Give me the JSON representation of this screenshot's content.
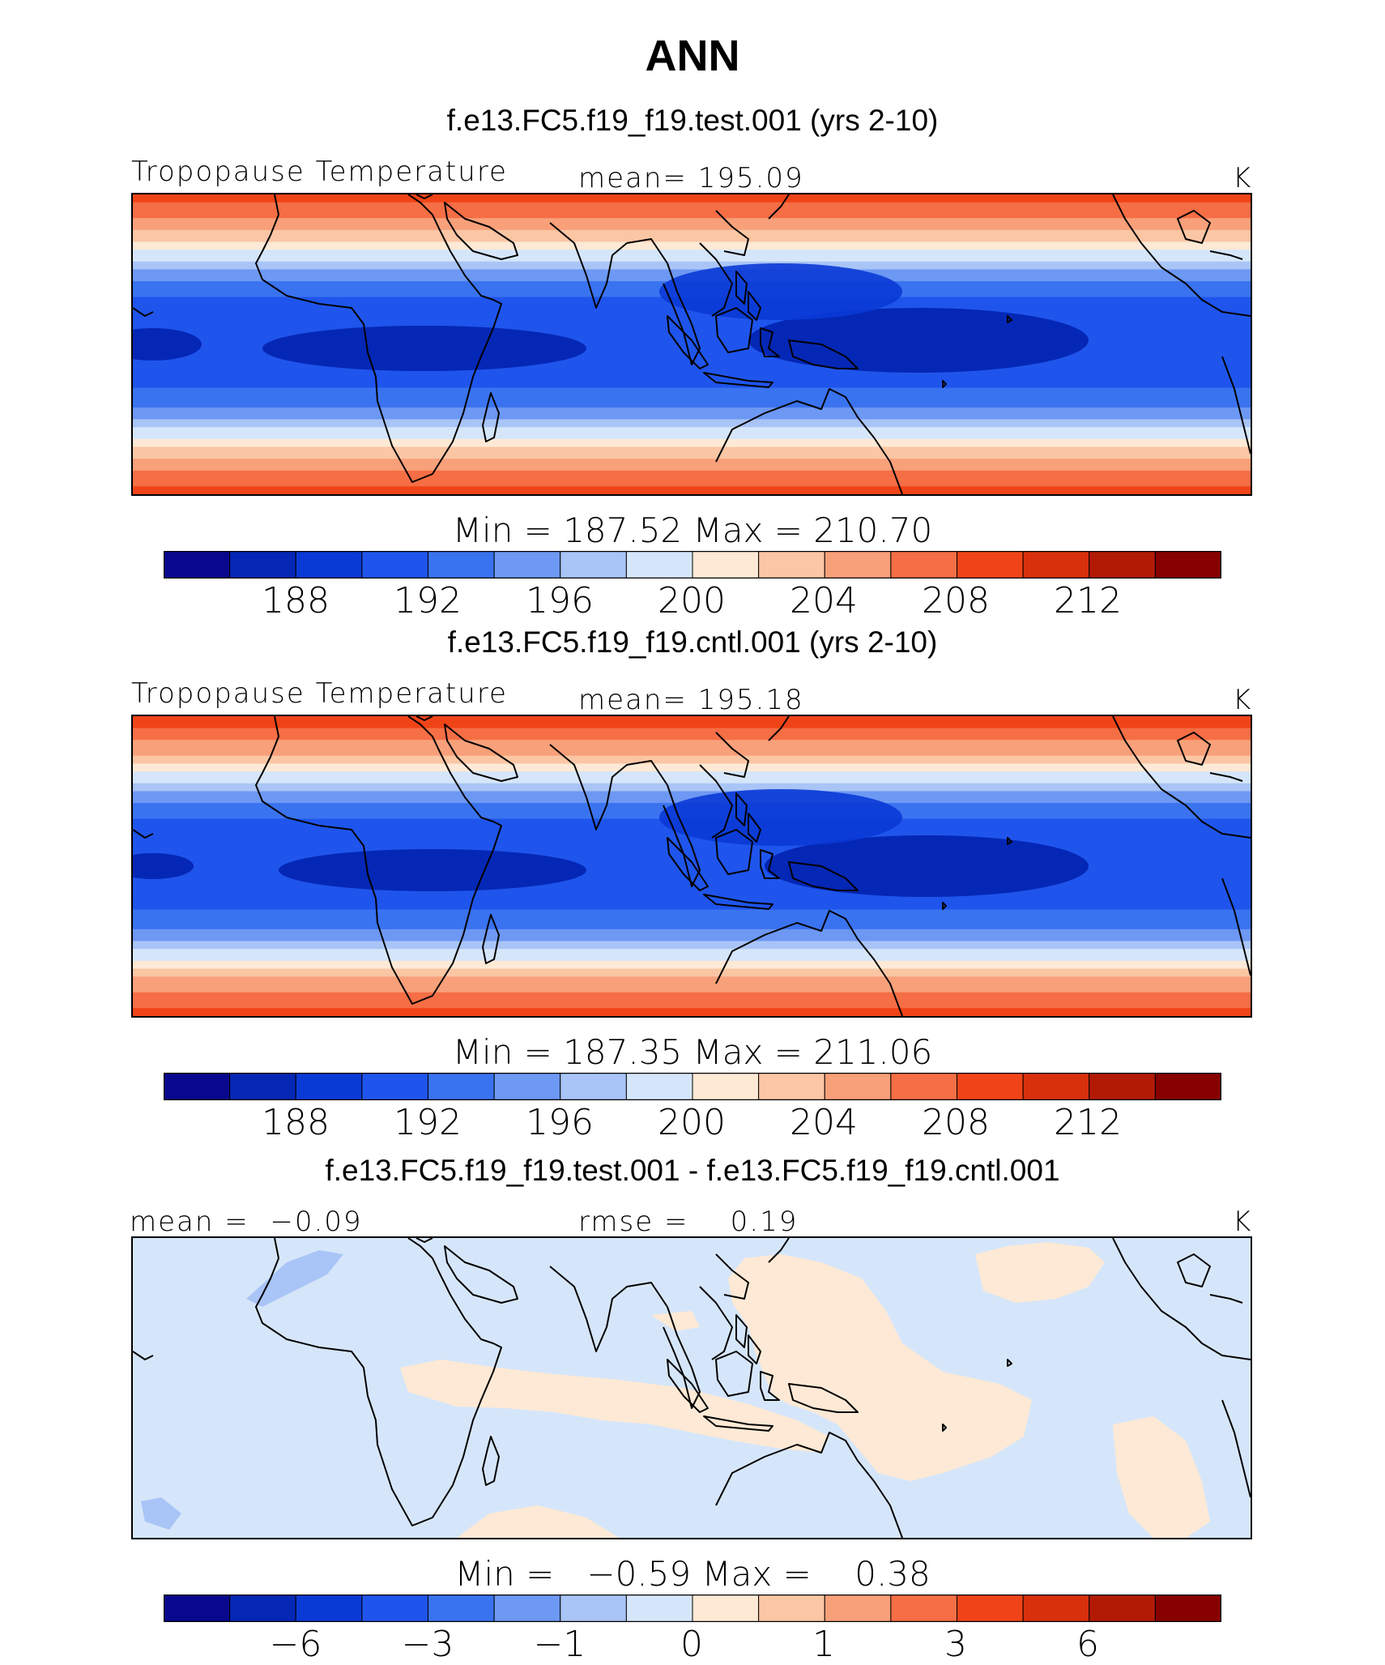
{
  "page_title": "ANN",
  "colors": {
    "palette": [
      "#08088e",
      "#0527b5",
      "#0a3ad6",
      "#1f55ec",
      "#3a73f0",
      "#6d98f3",
      "#a9c4f6",
      "#d6e6fa",
      "#fde9d5",
      "#fbc6a4",
      "#f8a07a",
      "#f66e45",
      "#f04418",
      "#d8300c",
      "#b21a05",
      "#870101"
    ],
    "coast": "#000000"
  },
  "panels": [
    {
      "case_title": "f.e13.FC5.f19_f19.test.001 (yrs 2-10)",
      "left_label": "Tropopause Temperature",
      "center_label": "mean= 195.09",
      "right_label": "K",
      "minmax": "Min = 187.52 Max = 210.70",
      "colorbar_ticks": [
        "188",
        "192",
        "196",
        "200",
        "204",
        "208",
        "212"
      ]
    },
    {
      "case_title": "f.e13.FC5.f19_f19.cntl.001 (yrs 2-10)",
      "left_label": "Tropopause Temperature",
      "center_label": "mean= 195.18",
      "right_label": "K",
      "minmax": "Min = 187.35 Max = 211.06",
      "colorbar_ticks": [
        "188",
        "192",
        "196",
        "200",
        "204",
        "208",
        "212"
      ]
    },
    {
      "case_title": "f.e13.FC5.f19_f19.test.001 - f.e13.FC5.f19_f19.cntl.001",
      "left_label": "mean =  −0.09",
      "center_label": "rmse =    0.19",
      "right_label": "K",
      "minmax": "Min =   −0.59 Max =    0.38",
      "colorbar_ticks": [
        "−6",
        "−3",
        "−1",
        "0",
        "1",
        "3",
        "6"
      ]
    }
  ],
  "chart_data": [
    {
      "type": "heatmap",
      "title": "Tropopause Temperature",
      "case": "f.e13.FC5.f19_f19.test.001 (yrs 2-10)",
      "units": "K",
      "mean": 195.09,
      "min": 187.52,
      "max": 210.7,
      "longitude_range": [
        0,
        360
      ],
      "latitude_range": [
        -38,
        38
      ],
      "contour_levels": [
        186,
        188,
        190,
        192,
        194,
        196,
        198,
        200,
        202,
        204,
        206,
        208,
        210,
        212,
        214
      ],
      "zonal_profile": {
        "lat": [
          -38,
          -34,
          -30,
          -26,
          -22,
          -18,
          -14,
          -10,
          -6,
          -2,
          2,
          6,
          10,
          14,
          18,
          22,
          26,
          30,
          34,
          38
        ],
        "value": [
          209,
          207,
          205,
          202,
          198.5,
          195,
          193,
          191.5,
          190.8,
          190.5,
          190.4,
          190.6,
          191.2,
          192.5,
          195,
          198.5,
          202,
          205,
          207,
          209
        ]
      }
    },
    {
      "type": "heatmap",
      "title": "Tropopause Temperature",
      "case": "f.e13.FC5.f19_f19.cntl.001 (yrs 2-10)",
      "units": "K",
      "mean": 195.18,
      "min": 187.35,
      "max": 211.06,
      "longitude_range": [
        0,
        360
      ],
      "latitude_range": [
        -38,
        38
      ],
      "contour_levels": [
        186,
        188,
        190,
        192,
        194,
        196,
        198,
        200,
        202,
        204,
        206,
        208,
        210,
        212,
        214
      ],
      "zonal_profile": {
        "lat": [
          -38,
          -34,
          -30,
          -26,
          -22,
          -18,
          -14,
          -10,
          -6,
          -2,
          2,
          6,
          10,
          14,
          18,
          22,
          26,
          30,
          34,
          38
        ],
        "value": [
          209.3,
          207.2,
          205.2,
          202.1,
          198.6,
          195.1,
          193,
          191.5,
          190.8,
          190.5,
          190.4,
          190.6,
          191.2,
          192.5,
          195.1,
          198.6,
          202.2,
          205.2,
          207.3,
          209.4
        ]
      }
    },
    {
      "type": "heatmap",
      "title": "f.e13.FC5.f19_f19.test.001 - f.e13.FC5.f19_f19.cntl.001",
      "units": "K",
      "mean": -0.09,
      "rmse": 0.19,
      "min": -0.59,
      "max": 0.38,
      "longitude_range": [
        0,
        360
      ],
      "latitude_range": [
        -38,
        38
      ],
      "contour_levels": [
        -8,
        -6,
        -4,
        -3,
        -2,
        -1,
        -0.5,
        0,
        0.5,
        1,
        2,
        3,
        4,
        6,
        8
      ]
    }
  ]
}
